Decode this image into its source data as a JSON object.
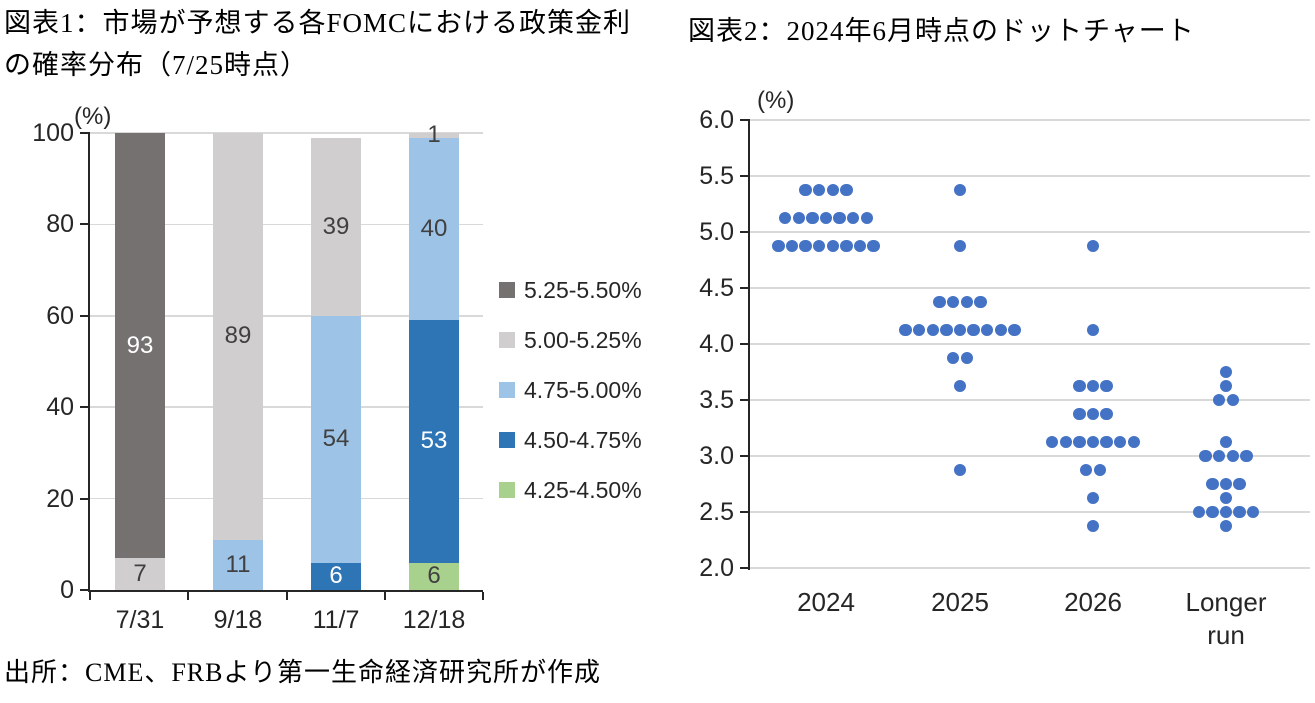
{
  "figure1": {
    "title_line1": "図表1：市場が予想する各FOMCにおける政策金利",
    "title_line2": "の確率分布（7/25時点）",
    "unit_label": "(%)"
  },
  "figure2": {
    "title": "図表2：2024年6月時点のドットチャート",
    "unit_label": "(%)"
  },
  "source": "出所：CME、FRBより第一生命経済研究所が作成",
  "colors": {
    "bar_dark_gray": "#767171",
    "bar_light_gray": "#d0cece",
    "bar_light_blue": "#9dc3e6",
    "bar_dark_blue": "#2e75b6",
    "bar_green": "#a9d18e",
    "dot_blue": "#4472c4",
    "gridline": "#d9d9d9",
    "axis": "#262626",
    "label_dark": "#404040",
    "label_light": "#ffffff"
  },
  "chart_data": [
    {
      "id": "fomc-rate-probability",
      "type": "bar",
      "stacked": true,
      "title": "図表1：市場が予想する各FOMCにおける政策金利の確率分布（7/25時点）",
      "ylabel": "(%)",
      "ylim": [
        0,
        100
      ],
      "y_ticks": [
        0,
        20,
        40,
        60,
        80,
        100
      ],
      "grid": true,
      "legend_position": "right",
      "categories": [
        "7/31",
        "9/18",
        "11/7",
        "12/18"
      ],
      "series": [
        {
          "name": "5.25-5.50%",
          "color": "#767171",
          "values": [
            93,
            0,
            0,
            0
          ]
        },
        {
          "name": "5.00-5.25%",
          "color": "#d0cece",
          "values": [
            7,
            89,
            39,
            1
          ]
        },
        {
          "name": "4.75-5.00%",
          "color": "#9dc3e6",
          "values": [
            0,
            11,
            54,
            40
          ]
        },
        {
          "name": "4.50-4.75%",
          "color": "#2e75b6",
          "values": [
            0,
            0,
            6,
            53
          ]
        },
        {
          "name": "4.25-4.50%",
          "color": "#a9d18e",
          "values": [
            0,
            0,
            0,
            6
          ]
        }
      ]
    },
    {
      "id": "fomc-dot-plot-june-2024",
      "type": "scatter",
      "title": "図表2：2024年6月時点のドットチャート",
      "ylabel": "(%)",
      "ylim": [
        2.0,
        6.0
      ],
      "y_tick_step": 0.5,
      "grid": true,
      "dot_color": "#4472c4",
      "columns": [
        {
          "category": "2024",
          "dots": [
            {
              "value": 5.375,
              "count": 4
            },
            {
              "value": 5.125,
              "count": 7
            },
            {
              "value": 4.875,
              "count": 8
            }
          ]
        },
        {
          "category": "2025",
          "dots": [
            {
              "value": 5.375,
              "count": 1
            },
            {
              "value": 4.875,
              "count": 1
            },
            {
              "value": 4.375,
              "count": 4
            },
            {
              "value": 4.125,
              "count": 9
            },
            {
              "value": 3.875,
              "count": 2
            },
            {
              "value": 3.625,
              "count": 1
            },
            {
              "value": 2.875,
              "count": 1
            }
          ]
        },
        {
          "category": "2026",
          "dots": [
            {
              "value": 4.875,
              "count": 1
            },
            {
              "value": 4.125,
              "count": 1
            },
            {
              "value": 3.625,
              "count": 3
            },
            {
              "value": 3.375,
              "count": 3
            },
            {
              "value": 3.125,
              "count": 7
            },
            {
              "value": 2.875,
              "count": 2
            },
            {
              "value": 2.625,
              "count": 1
            },
            {
              "value": 2.375,
              "count": 1
            }
          ]
        },
        {
          "category": "Longer run",
          "dots": [
            {
              "value": 3.75,
              "count": 1
            },
            {
              "value": 3.625,
              "count": 1
            },
            {
              "value": 3.5,
              "count": 2
            },
            {
              "value": 3.125,
              "count": 1
            },
            {
              "value": 3.0,
              "count": 4
            },
            {
              "value": 2.75,
              "count": 3
            },
            {
              "value": 2.625,
              "count": 1
            },
            {
              "value": 2.5,
              "count": 5
            },
            {
              "value": 2.375,
              "count": 1
            }
          ]
        }
      ]
    }
  ]
}
